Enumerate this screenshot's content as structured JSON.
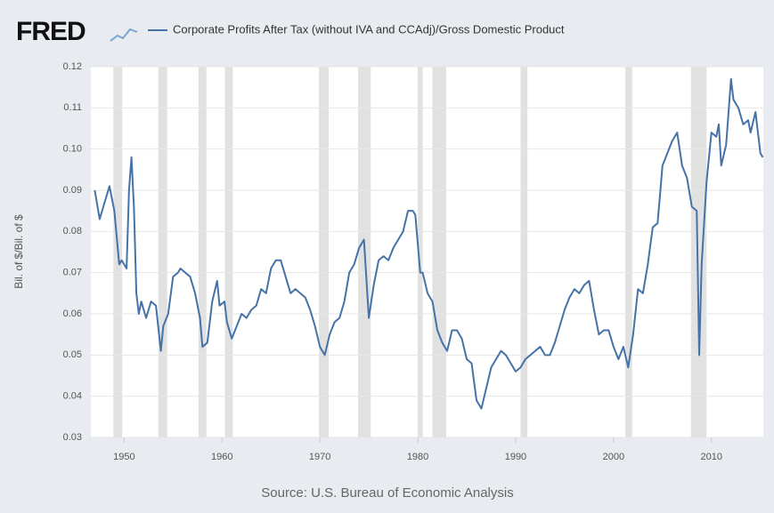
{
  "chart_data": {
    "type": "line",
    "logo": "FRED",
    "ylabel": "Bil. of $/Bil. of $",
    "source": "Source: U.S. Bureau of Economic Analysis",
    "xlim": [
      1946.6,
      2015.3
    ],
    "xticks": [
      1950,
      1960,
      1970,
      1980,
      1990,
      2000,
      2010
    ],
    "ylim": [
      0.03,
      0.12
    ],
    "yticks": [
      0.03,
      0.04,
      0.05,
      0.06,
      0.07,
      0.08,
      0.09,
      {
        "value": 0.1,
        "label": "0.10"
      },
      0.11,
      0.12
    ],
    "grid": true,
    "recession_color": "#e1e1e1",
    "recessions": [
      [
        1948.9,
        1949.8
      ],
      [
        1953.5,
        1954.4
      ],
      [
        1957.6,
        1958.4
      ],
      [
        1960.3,
        1961.1
      ],
      [
        1969.9,
        1970.9
      ],
      [
        1973.9,
        1975.2
      ],
      [
        1980.0,
        1980.5
      ],
      [
        1981.5,
        1982.9
      ],
      [
        1990.5,
        1991.2
      ],
      [
        2001.2,
        2001.9
      ],
      [
        2007.9,
        2009.5
      ]
    ],
    "series": [
      {
        "name": "Corporate Profits After Tax (without IVA and CCAdj)/Gross Domestic Product",
        "color": "#4572a7",
        "x": [
          1947.0,
          1947.5,
          1948.0,
          1948.5,
          1949.0,
          1949.5,
          1949.75,
          1950.0,
          1950.25,
          1950.5,
          1950.75,
          1951.0,
          1951.25,
          1951.5,
          1951.75,
          1952.25,
          1952.75,
          1953.25,
          1953.75,
          1954.0,
          1954.5,
          1955.0,
          1955.5,
          1955.75,
          1956.25,
          1956.75,
          1957.25,
          1957.75,
          1958.0,
          1958.5,
          1959.0,
          1959.5,
          1959.75,
          1960.25,
          1960.5,
          1961.0,
          1961.5,
          1962.0,
          1962.5,
          1963.0,
          1963.5,
          1964.0,
          1964.5,
          1965.0,
          1965.5,
          1966.0,
          1966.5,
          1967.0,
          1967.5,
          1968.0,
          1968.5,
          1969.0,
          1969.5,
          1970.0,
          1970.5,
          1971.0,
          1971.5,
          1972.0,
          1972.5,
          1973.0,
          1973.5,
          1974.0,
          1974.5,
          1975.0,
          1975.5,
          1976.0,
          1976.5,
          1977.0,
          1977.5,
          1978.0,
          1978.5,
          1979.0,
          1979.5,
          1979.75,
          1980.25,
          1980.5,
          1981.0,
          1981.5,
          1982.0,
          1982.5,
          1983.0,
          1983.5,
          1984.0,
          1984.5,
          1985.0,
          1985.5,
          1986.0,
          1986.5,
          1987.0,
          1987.5,
          1988.0,
          1988.5,
          1989.0,
          1989.5,
          1990.0,
          1990.5,
          1991.0,
          1991.5,
          1992.0,
          1992.5,
          1993.0,
          1993.5,
          1994.0,
          1994.5,
          1995.0,
          1995.5,
          1996.0,
          1996.5,
          1997.0,
          1997.5,
          1998.0,
          1998.5,
          1999.0,
          1999.5,
          2000.0,
          2000.5,
          2001.0,
          2001.5,
          2002.0,
          2002.5,
          2003.0,
          2003.5,
          2004.0,
          2004.5,
          2005.0,
          2005.5,
          2006.0,
          2006.5,
          2007.0,
          2007.5,
          2008.0,
          2008.5,
          2008.75,
          2009.0,
          2009.5,
          2010.0,
          2010.5,
          2010.75,
          2011.0,
          2011.5,
          2012.0,
          2012.25,
          2012.75,
          2013.25,
          2013.75,
          2014.0,
          2014.5,
          2015.0,
          2015.25
        ],
        "values": [
          0.09,
          0.083,
          0.087,
          0.091,
          0.085,
          0.072,
          0.073,
          0.072,
          0.071,
          0.09,
          0.098,
          0.086,
          0.065,
          0.06,
          0.063,
          0.059,
          0.063,
          0.062,
          0.051,
          0.057,
          0.06,
          0.069,
          0.07,
          0.071,
          0.07,
          0.069,
          0.065,
          0.059,
          0.052,
          0.053,
          0.063,
          0.068,
          0.062,
          0.063,
          0.058,
          0.054,
          0.057,
          0.06,
          0.059,
          0.061,
          0.062,
          0.066,
          0.065,
          0.071,
          0.073,
          0.073,
          0.069,
          0.065,
          0.066,
          0.065,
          0.064,
          0.061,
          0.057,
          0.052,
          0.05,
          0.055,
          0.058,
          0.059,
          0.063,
          0.07,
          0.072,
          0.076,
          0.078,
          0.059,
          0.067,
          0.073,
          0.074,
          0.073,
          0.076,
          0.078,
          0.08,
          0.085,
          0.085,
          0.084,
          0.07,
          0.07,
          0.065,
          0.063,
          0.056,
          0.053,
          0.051,
          0.056,
          0.056,
          0.054,
          0.049,
          0.048,
          0.039,
          0.037,
          0.042,
          0.047,
          0.049,
          0.051,
          0.05,
          0.048,
          0.046,
          0.047,
          0.049,
          0.05,
          0.051,
          0.052,
          0.05,
          0.05,
          0.053,
          0.057,
          0.061,
          0.064,
          0.066,
          0.065,
          0.067,
          0.068,
          0.061,
          0.055,
          0.056,
          0.056,
          0.052,
          0.049,
          0.052,
          0.047,
          0.055,
          0.066,
          0.065,
          0.072,
          0.081,
          0.082,
          0.096,
          0.099,
          0.102,
          0.104,
          0.096,
          0.093,
          0.086,
          0.085,
          0.05,
          0.072,
          0.092,
          0.104,
          0.103,
          0.106,
          0.096,
          0.101,
          0.117,
          0.112,
          0.11,
          0.106,
          0.107,
          0.104,
          0.109,
          0.099,
          0.098
        ]
      }
    ]
  }
}
